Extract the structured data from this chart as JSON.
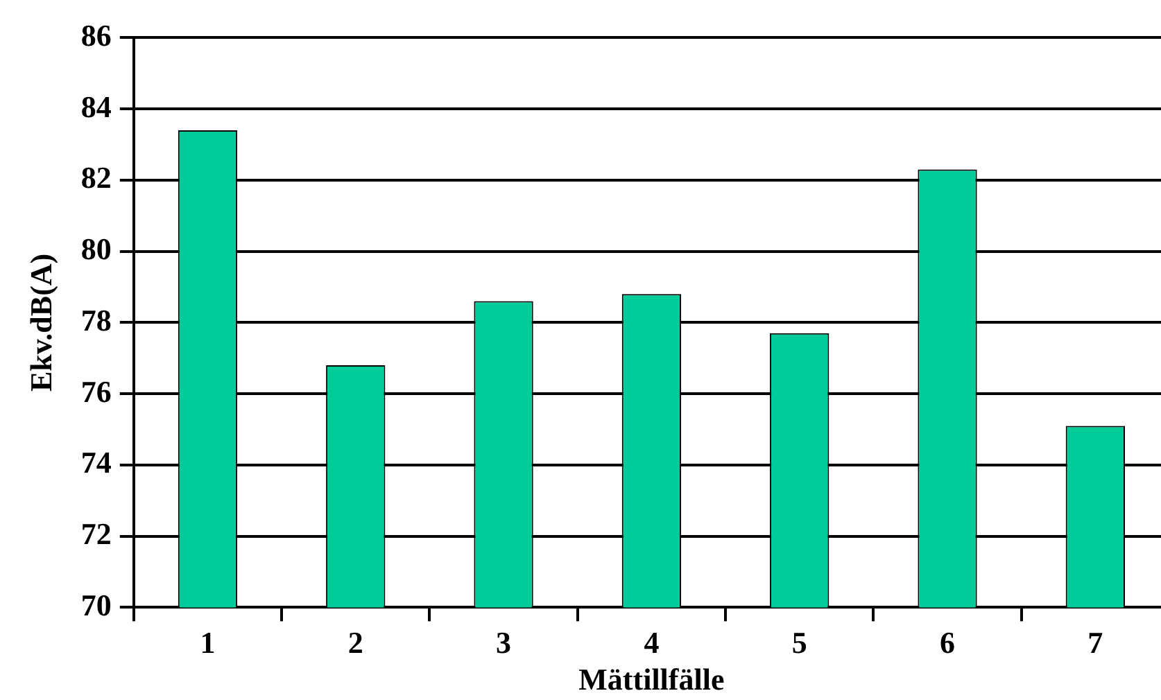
{
  "chart_data": {
    "type": "bar",
    "xlabel": "Mättillfälle",
    "ylabel": "Ekv.dB(A)",
    "categories": [
      "1",
      "2",
      "3",
      "4",
      "5",
      "6",
      "7"
    ],
    "values": [
      83.4,
      76.8,
      78.6,
      78.8,
      77.7,
      82.3,
      75.1
    ],
    "color": "#00cc99",
    "ylim": [
      70,
      86
    ],
    "yticks": [
      70,
      72,
      74,
      76,
      78,
      80,
      82,
      84,
      86
    ],
    "grid": "y"
  }
}
